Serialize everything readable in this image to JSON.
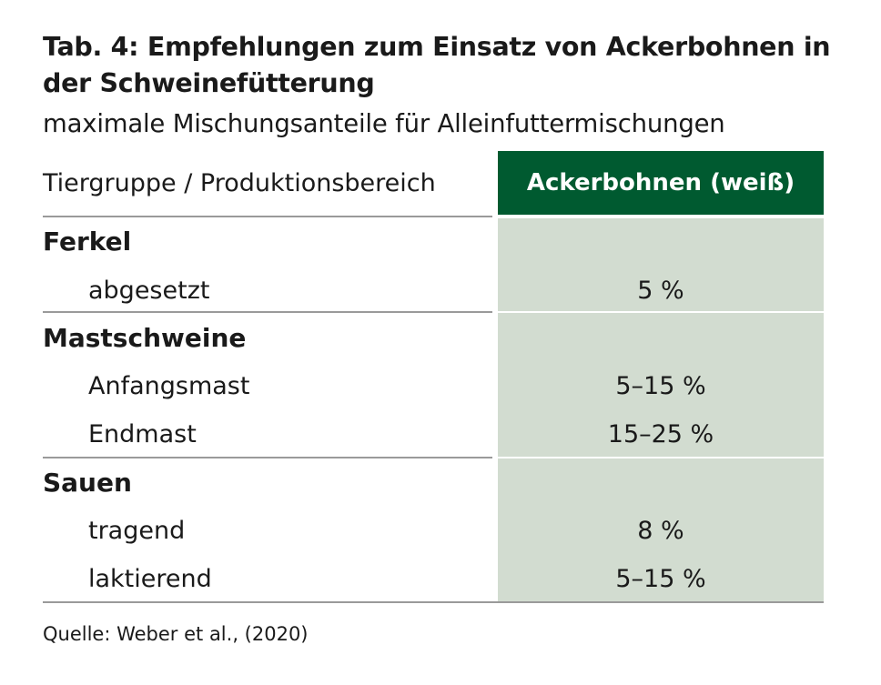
{
  "title": "Tab. 4: Empfehlungen zum Einsatz von Ackerbohnen in der Schweinefütterung",
  "subtitle": "maximale Mischungsanteile für Alleinfuttermischungen",
  "table": {
    "header_label": "Tiergruppe / Produktionsbereich",
    "header_value": "Ackerbohnen (weiß)",
    "groups": [
      {
        "name": "Ferkel",
        "rows": [
          {
            "label": "abgesetzt",
            "value": "5 %"
          }
        ]
      },
      {
        "name": "Mastschweine",
        "rows": [
          {
            "label": "Anfangsmast",
            "value": "5–15 %"
          },
          {
            "label": "Endmast",
            "value": "15–25 %"
          }
        ]
      },
      {
        "name": "Sauen",
        "rows": [
          {
            "label": "tragend",
            "value": "8 %"
          },
          {
            "label": "laktierend",
            "value": "5–15 %"
          }
        ]
      }
    ]
  },
  "source": "Quelle: Weber et al., (2020)",
  "colors": {
    "header_background": "#005a30",
    "value_column_background": "#d2dcd0"
  }
}
